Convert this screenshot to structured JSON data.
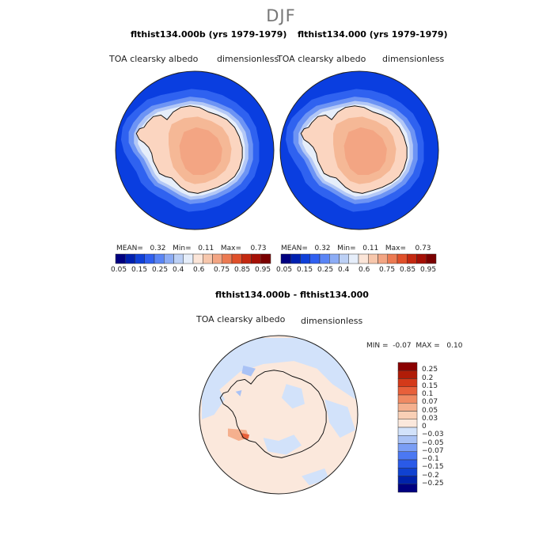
{
  "header": {
    "title": "DJF"
  },
  "panels": [
    {
      "title": "flthist134.000b (yrs 1979-1979)",
      "variable": "TOA clearsky albedo",
      "units": "dimensionless",
      "stats": {
        "mean_label": "MEAN=",
        "mean": "0.32",
        "min_label": "Min=",
        "min": "0.11",
        "max_label": "Max=",
        "max": "0.73"
      }
    },
    {
      "title": "flthist134.000 (yrs 1979-1979)",
      "variable": "TOA clearsky albedo",
      "units": "dimensionless",
      "stats": {
        "mean_label": "MEAN=",
        "mean": "0.32",
        "min_label": "Min=",
        "min": "0.11",
        "max_label": "Max=",
        "max": "0.73"
      }
    }
  ],
  "diff_panel": {
    "title": "flthist134.000b - flthist134.000",
    "variable": "TOA clearsky albedo",
    "units": "dimensionless",
    "stats": {
      "min_label": "MIN =",
      "min": "-0.07",
      "max_label": "MAX =",
      "max": "0.10"
    }
  },
  "colorbar_main": {
    "colors": [
      "#000080",
      "#0020b0",
      "#1040d8",
      "#3060f0",
      "#5a85f5",
      "#8cacf5",
      "#bcd0f5",
      "#e6eefa",
      "#fbe5d8",
      "#f7c7ac",
      "#f3a583",
      "#ec7a52",
      "#e0502a",
      "#c42810",
      "#a50f05",
      "#7a0000"
    ],
    "labels": [
      "0.05",
      "0.15",
      "0.25",
      "0.4",
      "0.6",
      "0.75",
      "0.85",
      "0.95"
    ]
  },
  "colorbar_diff": {
    "colors": [
      "#000080",
      "#0022aa",
      "#1042d0",
      "#2a5ae8",
      "#4b78f2",
      "#7a9ef5",
      "#a9c2f5",
      "#d2e2fa",
      "#fbe8dc",
      "#f9d0b6",
      "#f5b08e",
      "#f08a62",
      "#e8603a",
      "#d43a1a",
      "#b01c08",
      "#8a0000"
    ],
    "labels": [
      "0.25",
      "0.2",
      "0.15",
      "0.1",
      "0.07",
      "0.05",
      "0.03",
      "0",
      "−0.03",
      "−0.05",
      "−0.07",
      "−0.1",
      "−0.15",
      "−0.2",
      "−0.25"
    ]
  },
  "chart_data": [
    {
      "type": "heatmap",
      "projection": "south-polar-stereographic",
      "title": "flthist134.000b (yrs 1979-1979)",
      "variable": "TOA clearsky albedo",
      "units": "dimensionless",
      "mean": 0.32,
      "min": 0.11,
      "max": 0.73,
      "levels": [
        0.05,
        0.1,
        0.15,
        0.2,
        0.25,
        0.3,
        0.4,
        0.5,
        0.6,
        0.65,
        0.75,
        0.8,
        0.85,
        0.9,
        0.95
      ]
    },
    {
      "type": "heatmap",
      "projection": "south-polar-stereographic",
      "title": "flthist134.000 (yrs 1979-1979)",
      "variable": "TOA clearsky albedo",
      "units": "dimensionless",
      "mean": 0.32,
      "min": 0.11,
      "max": 0.73,
      "levels": [
        0.05,
        0.1,
        0.15,
        0.2,
        0.25,
        0.3,
        0.4,
        0.5,
        0.6,
        0.65,
        0.75,
        0.8,
        0.85,
        0.9,
        0.95
      ]
    },
    {
      "type": "heatmap",
      "projection": "south-polar-stereographic",
      "title": "flthist134.000b - flthist134.000",
      "variable": "TOA clearsky albedo",
      "units": "dimensionless",
      "min": -0.07,
      "max": 0.1,
      "levels": [
        -0.25,
        -0.2,
        -0.15,
        -0.1,
        -0.07,
        -0.05,
        -0.03,
        0,
        0.03,
        0.05,
        0.07,
        0.1,
        0.15,
        0.2,
        0.25
      ]
    }
  ]
}
